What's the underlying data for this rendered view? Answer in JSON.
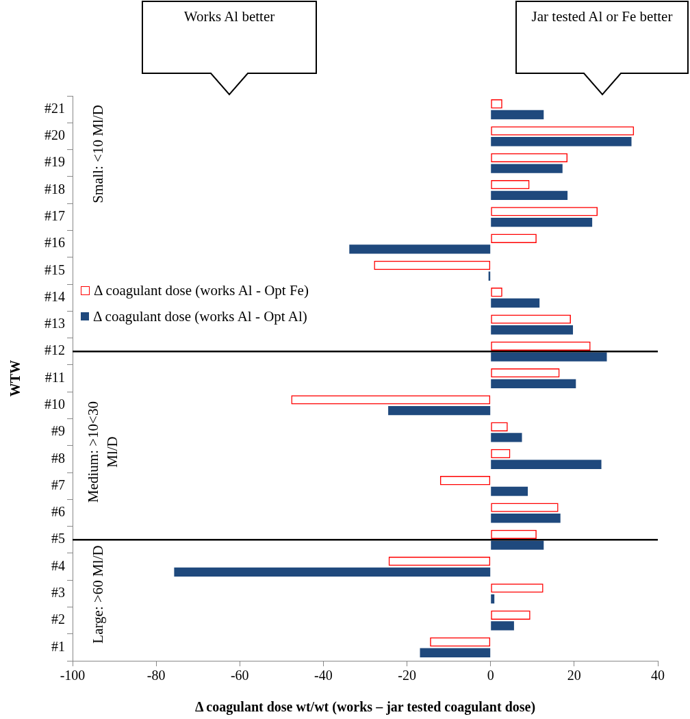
{
  "chart_data": {
    "type": "bar",
    "orientation": "horizontal",
    "categories": [
      "#21",
      "#20",
      "#19",
      "#18",
      "#17",
      "#16",
      "#15",
      "#14",
      "#13",
      "#12",
      "#11",
      "#10",
      "#9",
      "#8",
      "#7",
      "#6",
      "#5",
      "#4",
      "#3",
      "#2",
      "#1"
    ],
    "series": [
      {
        "name": "Δ coagulant dose (works Al - Opt Fe)",
        "color": "#ff0000",
        "values": [
          2.8,
          34.3,
          18.4,
          9.3,
          25.6,
          11.0,
          -27.9,
          2.8,
          19.2,
          23.9,
          16.5,
          -47.7,
          4.1,
          4.7,
          -12.1,
          16.2,
          11.0,
          -24.4,
          12.6,
          9.5,
          -14.5
        ]
      },
      {
        "name": "Δ coagulant dose (works Al - Opt Al)",
        "color": "#1f497d",
        "values": [
          12.7,
          33.7,
          17.2,
          18.4,
          24.3,
          -33.8,
          -0.5,
          11.7,
          19.7,
          27.8,
          20.4,
          -24.5,
          7.5,
          26.5,
          8.9,
          16.7,
          12.7,
          -75.7,
          0.9,
          5.6,
          -16.9
        ]
      }
    ],
    "xlim": [
      -100,
      40
    ],
    "xticks": [
      -100,
      -80,
      -60,
      -40,
      -20,
      0,
      20,
      40
    ],
    "xlabel": "Δ coagulant dose wt/wt (works – jar tested coagulant dose)",
    "ylabel": "WTW",
    "legend": "left",
    "grid": false,
    "ref_lines": [
      {
        "axis": "y",
        "value": "#12",
        "color": "#000000"
      },
      {
        "axis": "y",
        "value": "#5",
        "color": "#000000"
      }
    ],
    "annotations": [
      "Works Al better",
      "Jar tested Al or Fe better",
      "Small: <10 Ml/D",
      "Medium: >10<30 Ml/D",
      "Large: >60 Ml/D"
    ]
  }
}
